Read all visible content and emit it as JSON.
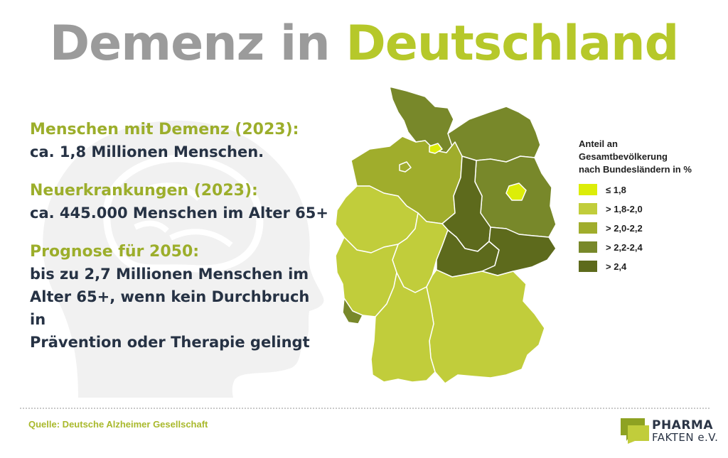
{
  "title": {
    "part1": "Demenz in",
    "part2": "Deutschland"
  },
  "stats": [
    {
      "label": "Menschen mit Demenz (2023):",
      "lines": [
        "ca. 1,8 Millionen Menschen."
      ]
    },
    {
      "label": "Neuerkrankungen (2023):",
      "lines": [
        "ca. 445.000 Menschen im Alter 65+"
      ]
    },
    {
      "label": "Prognose für 2050:",
      "lines": [
        "bis zu 2,7 Millionen Menschen im",
        "Alter 65+, wenn kein Durchbruch in",
        "Prävention oder Therapie gelingt"
      ]
    }
  ],
  "legend": {
    "title_lines": [
      "Anteil an",
      "Gesamtbevölkerung",
      "nach Bundesländern in %"
    ],
    "items": [
      {
        "label": "≤ 1,8",
        "color": "#dced08"
      },
      {
        "label": "> 1,8-2,0",
        "color": "#c1cd3b"
      },
      {
        "label": "> 2,0-2,2",
        "color": "#a0ad2c"
      },
      {
        "label": "> 2,2-2,4",
        "color": "#78882a"
      },
      {
        "label": "> 2,4",
        "color": "#5d6a1c"
      }
    ]
  },
  "map": {
    "states": [
      {
        "name": "Schleswig-Holstein",
        "class": "> 2,2-2,4"
      },
      {
        "name": "Hamburg",
        "class": "≤ 1,8"
      },
      {
        "name": "Mecklenburg-Vorpommern",
        "class": "> 2,2-2,4"
      },
      {
        "name": "Bremen",
        "class": "> 2,0-2,2"
      },
      {
        "name": "Niedersachsen",
        "class": "> 2,0-2,2"
      },
      {
        "name": "Berlin",
        "class": "≤ 1,8"
      },
      {
        "name": "Brandenburg",
        "class": "> 2,2-2,4"
      },
      {
        "name": "Sachsen-Anhalt",
        "class": "> 2,4"
      },
      {
        "name": "Nordrhein-Westfalen",
        "class": "> 1,8-2,0"
      },
      {
        "name": "Hessen",
        "class": "> 1,8-2,0"
      },
      {
        "name": "Thüringen",
        "class": "> 2,4"
      },
      {
        "name": "Sachsen",
        "class": "> 2,4"
      },
      {
        "name": "Rheinland-Pfalz",
        "class": "> 1,8-2,0"
      },
      {
        "name": "Saarland",
        "class": "> 2,2-2,4"
      },
      {
        "name": "Bayern",
        "class": "> 1,8-2,0"
      },
      {
        "name": "Baden-Württemberg",
        "class": "> 1,8-2,0"
      }
    ]
  },
  "source": "Quelle: Deutsche Alzheimer Gesellschaft",
  "logo": {
    "line1": "PHARMA",
    "line2": "FAKTEN e.V.",
    "colors": [
      "#8ea222",
      "#c1cd3b",
      "#2b3546"
    ]
  }
}
